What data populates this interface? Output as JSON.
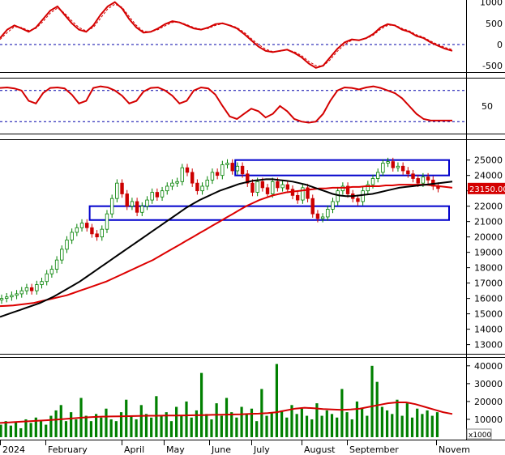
{
  "chart_data": [
    {
      "panel": "oscillator-top",
      "type": "line",
      "y_ticks": [
        "1000",
        "500",
        "0",
        "-500"
      ],
      "ylim": [
        -650,
        1050
      ],
      "zero_line": 0,
      "series": [
        {
          "color": "#d40000",
          "style": "solid",
          "values": [
            150,
            350,
            450,
            380,
            300,
            400,
            600,
            800,
            900,
            700,
            500,
            350,
            300,
            450,
            700,
            900,
            1000,
            850,
            600,
            400,
            280,
            300,
            380,
            480,
            550,
            520,
            450,
            380,
            350,
            400,
            480,
            500,
            450,
            380,
            250,
            100,
            -50,
            -150,
            -180,
            -150,
            -120,
            -200,
            -300,
            -450,
            -550,
            -500,
            -300,
            -100,
            50,
            120,
            100,
            150,
            250,
            400,
            480,
            450,
            350,
            300,
            200,
            150,
            50,
            -30,
            -100,
            -150
          ],
          "x_index_span": [
            0,
            63
          ]
        },
        {
          "color": "#d40000",
          "style": "dashed",
          "values": [
            120,
            280,
            420,
            400,
            330,
            380,
            540,
            740,
            860,
            740,
            560,
            400,
            320,
            400,
            620,
            840,
            950,
            880,
            660,
            450,
            310,
            300,
            350,
            440,
            520,
            530,
            470,
            400,
            360,
            380,
            450,
            490,
            460,
            400,
            290,
            140,
            0,
            -110,
            -170,
            -160,
            -130,
            -170,
            -260,
            -400,
            -500,
            -510,
            -360,
            -160,
            0,
            100,
            110,
            140,
            220,
            360,
            450,
            460,
            380,
            320,
            230,
            170,
            80,
            0,
            -70,
            -120
          ],
          "x_index_span": [
            0,
            63
          ]
        }
      ]
    },
    {
      "panel": "oscillator-middle",
      "type": "line",
      "y_ticks": [
        "50"
      ],
      "ylim": [
        0,
        100
      ],
      "reference_lines": [
        80,
        20
      ],
      "series": [
        {
          "color": "#d40000",
          "style": "solid",
          "values": [
            85,
            86,
            84,
            80,
            60,
            55,
            75,
            85,
            86,
            84,
            72,
            55,
            60,
            85,
            88,
            86,
            80,
            70,
            55,
            60,
            78,
            85,
            86,
            80,
            70,
            55,
            60,
            80,
            86,
            84,
            72,
            50,
            30,
            25,
            35,
            45,
            40,
            28,
            35,
            50,
            40,
            25,
            20,
            18,
            20,
            35,
            60,
            80,
            86,
            85,
            82,
            86,
            88,
            85,
            80,
            75,
            65,
            50,
            35,
            25,
            22,
            22,
            22,
            22
          ],
          "x_index_span": [
            0,
            63
          ]
        }
      ]
    },
    {
      "panel": "price",
      "type": "candlestick",
      "y_ticks": [
        "25000",
        "24000",
        "23000",
        "22000",
        "21000",
        "20000",
        "19000",
        "18000",
        "17000",
        "16000",
        "15000",
        "14000",
        "13000"
      ],
      "ylim": [
        12400,
        26300
      ],
      "last_price_label": "23150.00",
      "closes": [
        16000,
        16100,
        16200,
        16300,
        16500,
        16700,
        16500,
        16900,
        17100,
        17600,
        17900,
        18500,
        19200,
        19800,
        20300,
        20600,
        20900,
        20600,
        20200,
        20000,
        20500,
        21500,
        22500,
        23500,
        22800,
        22000,
        22300,
        21600,
        22000,
        22400,
        22900,
        22600,
        23000,
        23300,
        23500,
        23600,
        24500,
        24200,
        23500,
        23000,
        23300,
        23700,
        24200,
        24000,
        24700,
        24800,
        24300,
        24600,
        24100,
        23500,
        22900,
        23600,
        23200,
        22800,
        23600,
        23200,
        23400,
        23100,
        22700,
        22400,
        23200,
        22500,
        21500,
        21200,
        21300,
        21800,
        22300,
        23000,
        23300,
        22800,
        22500,
        22300,
        23000,
        23400,
        23800,
        24200,
        24800,
        24900,
        24500,
        24600,
        24300,
        24100,
        23800,
        23500,
        23900,
        23700,
        23300,
        23150
      ],
      "ma_black": [
        14800,
        14950,
        15100,
        15250,
        15400,
        15550,
        15700,
        15900,
        16100,
        16350,
        16600,
        16850,
        17100,
        17400,
        17700,
        18000,
        18300,
        18600,
        18900,
        19200,
        19500,
        19800,
        20100,
        20400,
        20700,
        21000,
        21300,
        21600,
        21900,
        22150,
        22400,
        22600,
        22800,
        23000,
        23150,
        23300,
        23450,
        23550,
        23650,
        23700,
        23750,
        23750,
        23700,
        23650,
        23600,
        23500,
        23400,
        23250,
        23100,
        22950,
        22800,
        22700,
        22650,
        22650,
        22700,
        22750,
        22800,
        22900,
        23000,
        23100,
        23200,
        23250,
        23300,
        23350,
        23400,
        23450,
        23500,
        23550,
        23600
      ],
      "ma_red": [
        15500,
        15520,
        15550,
        15600,
        15650,
        15700,
        15800,
        15900,
        16000,
        16100,
        16200,
        16350,
        16500,
        16650,
        16800,
        16950,
        17100,
        17300,
        17500,
        17700,
        17900,
        18100,
        18300,
        18500,
        18750,
        19000,
        19250,
        19500,
        19750,
        20000,
        20250,
        20500,
        20750,
        21000,
        21250,
        21500,
        21750,
        22000,
        22200,
        22400,
        22550,
        22700,
        22800,
        22900,
        22950,
        23000,
        23050,
        23100,
        23150,
        23150,
        23200,
        23200,
        23200,
        23250,
        23250,
        23300,
        23300,
        23300,
        23350,
        23350,
        23400,
        23400,
        23400,
        23400,
        23400,
        23350,
        23300,
        23250,
        23200
      ],
      "resistance_boxes": [
        {
          "from_index": 44,
          "to_index": 87,
          "low": 24000,
          "high": 25000
        },
        {
          "from_index": 16,
          "to_index": 87,
          "low": 21100,
          "high": 22000
        }
      ]
    },
    {
      "panel": "volume",
      "type": "bar",
      "y_ticks": [
        "40000",
        "30000",
        "20000",
        "10000"
      ],
      "unit_label": "x1000",
      "ylim": [
        0,
        44000
      ],
      "x_labels": [
        "2024",
        "February",
        "April",
        "May",
        "June",
        "July",
        "August",
        "September",
        "Novem"
      ],
      "values": [
        7000,
        9000,
        6500,
        8500,
        5000,
        10000,
        8000,
        11000,
        9000,
        7000,
        12000,
        15000,
        18000,
        9000,
        14000,
        10000,
        22000,
        12000,
        9000,
        13000,
        11000,
        16000,
        10000,
        9000,
        14000,
        21000,
        12000,
        10000,
        18000,
        13000,
        11000,
        23000,
        12000,
        14000,
        9000,
        17000,
        12000,
        20000,
        11000,
        15000,
        36000,
        13000,
        10000,
        19000,
        12000,
        22000,
        14000,
        11000,
        17000,
        13000,
        16000,
        9000,
        27000,
        12000,
        14000,
        41000,
        15000,
        11000,
        18000,
        13000,
        16000,
        12000,
        10000,
        19000,
        12000,
        15000,
        13000,
        11000,
        27000,
        14000,
        10000,
        20000,
        16000,
        12000,
        40000,
        31000,
        17000,
        15000,
        13000,
        21000,
        12000,
        19000,
        11000,
        16000,
        13000,
        15000,
        12000,
        14000
      ],
      "ma": [
        8000,
        8300,
        8600,
        8900,
        9200,
        9500,
        9800,
        10200,
        10600,
        11000,
        11300,
        11500,
        11600,
        11700,
        11800,
        11900,
        12000,
        12000,
        12100,
        12100,
        12200,
        12300,
        12400,
        12500,
        12600,
        12700,
        12800,
        13000,
        13200,
        13500,
        14000,
        15000,
        16000,
        16500,
        16200,
        15800,
        15500,
        15300,
        15500,
        16000,
        17000,
        18000,
        19000,
        19500,
        19500,
        18500,
        17000,
        15500,
        14000,
        13000
      ],
      "ma_color": "#d40000",
      "bar_color": "#008000"
    }
  ]
}
